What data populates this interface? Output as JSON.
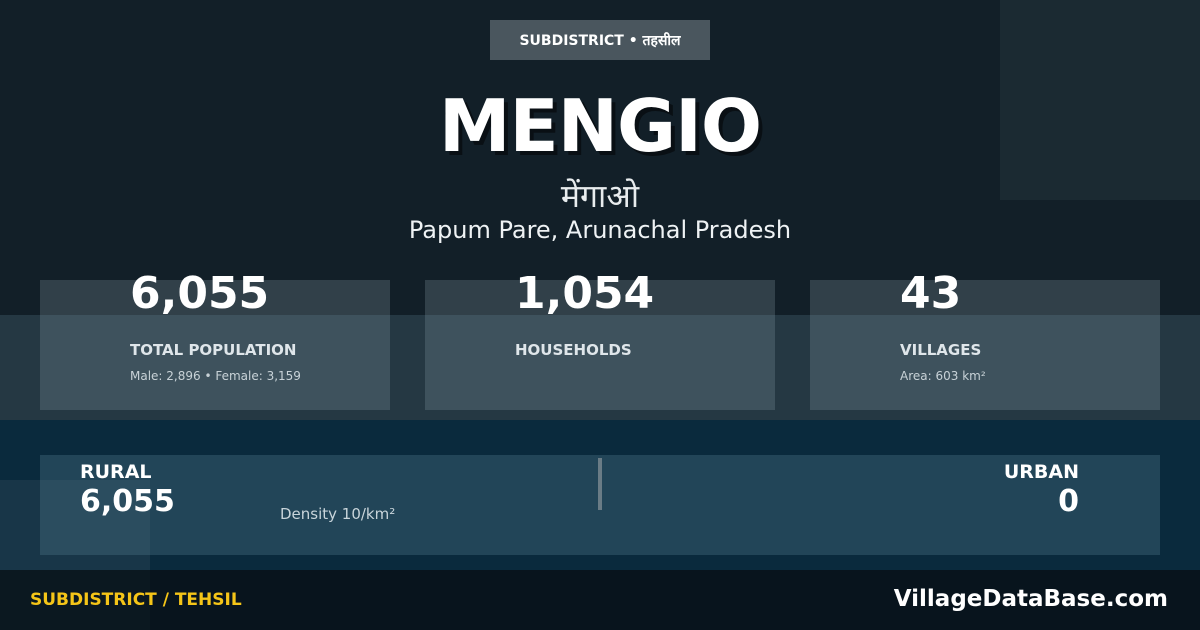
{
  "badge": "SUBDISTRICT • तहसील",
  "title": "MENGIO",
  "title_hindi": "मेंगाओ",
  "location": "Papum Pare, Arunachal Pradesh",
  "stats": [
    {
      "value": "6,055",
      "label": "TOTAL POPULATION",
      "sub": "Male: 2,896 • Female: 3,159"
    },
    {
      "value": "1,054",
      "label": "HOUSEHOLDS",
      "sub": ""
    },
    {
      "value": "43",
      "label": "VILLAGES",
      "sub": "Area: 603 km²"
    }
  ],
  "rural": {
    "label": "RURAL",
    "value": "6,055"
  },
  "density": "Density 10/km²",
  "urban": {
    "label": "URBAN",
    "value": "0"
  },
  "footer": {
    "left": "SUBDISTRICT / TEHSIL",
    "right": "VillageDataBase.com"
  },
  "colors": {
    "accent": "#f5c518",
    "background": "#121f28"
  }
}
